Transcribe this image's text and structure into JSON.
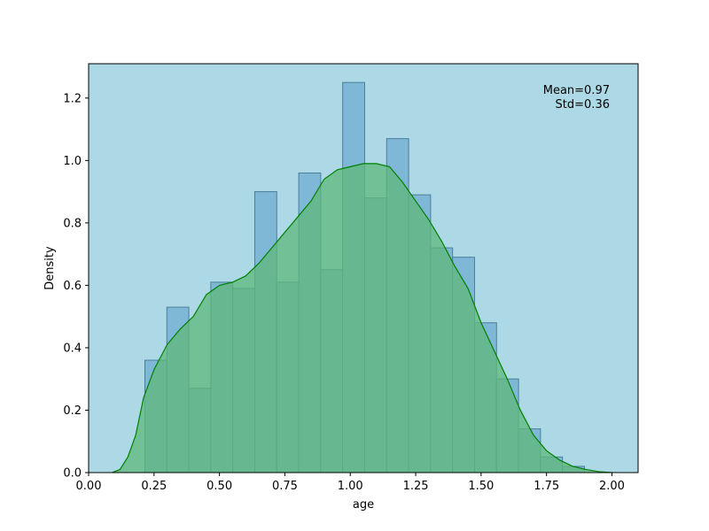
{
  "colors": {
    "plot_background": "#add8e6",
    "bar_fill": "#7fb7d6",
    "bar_edge": "#4a7f9a",
    "kde_fill": "#5fb87a",
    "kde_line": "#008000"
  },
  "chart_data": {
    "type": "bar",
    "xlabel": "age",
    "ylabel": "Density",
    "xlim": [
      0.0,
      2.1
    ],
    "ylim": [
      0.0,
      1.31
    ],
    "xticks": [
      0.0,
      0.25,
      0.5,
      0.75,
      1.0,
      1.25,
      1.5,
      1.75,
      2.0
    ],
    "xtick_labels": [
      "0.00",
      "0.25",
      "0.50",
      "0.75",
      "1.00",
      "1.25",
      "1.50",
      "1.75",
      "2.00"
    ],
    "yticks": [
      0.0,
      0.2,
      0.4,
      0.6,
      0.8,
      1.0,
      1.2
    ],
    "ytick_labels": [
      "0.0",
      "0.2",
      "0.4",
      "0.6",
      "0.8",
      "1.0",
      "1.2"
    ],
    "grid": false,
    "histogram": {
      "bin_edges": [
        0.215,
        0.299,
        0.383,
        0.467,
        0.551,
        0.635,
        0.719,
        0.803,
        0.887,
        0.971,
        1.055,
        1.139,
        1.223,
        1.307,
        1.391,
        1.475,
        1.559,
        1.643,
        1.727,
        1.811,
        1.895
      ],
      "densities": [
        0.36,
        0.53,
        0.27,
        0.61,
        0.59,
        0.9,
        0.61,
        0.96,
        0.65,
        1.25,
        0.88,
        1.07,
        0.89,
        0.72,
        0.69,
        0.48,
        0.3,
        0.14,
        0.05,
        0.02
      ]
    },
    "kde": {
      "x": [
        0.09,
        0.12,
        0.15,
        0.18,
        0.21,
        0.25,
        0.3,
        0.35,
        0.4,
        0.45,
        0.5,
        0.55,
        0.6,
        0.65,
        0.7,
        0.75,
        0.8,
        0.85,
        0.9,
        0.95,
        1.0,
        1.05,
        1.1,
        1.15,
        1.2,
        1.25,
        1.3,
        1.35,
        1.4,
        1.45,
        1.5,
        1.55,
        1.6,
        1.65,
        1.7,
        1.75,
        1.8,
        1.85,
        1.9,
        1.95,
        2.0
      ],
      "y": [
        0.0,
        0.01,
        0.05,
        0.12,
        0.24,
        0.33,
        0.41,
        0.46,
        0.5,
        0.57,
        0.6,
        0.61,
        0.63,
        0.67,
        0.72,
        0.77,
        0.82,
        0.87,
        0.94,
        0.97,
        0.98,
        0.99,
        0.99,
        0.98,
        0.93,
        0.87,
        0.81,
        0.74,
        0.66,
        0.59,
        0.48,
        0.39,
        0.3,
        0.2,
        0.12,
        0.07,
        0.04,
        0.02,
        0.01,
        0.003,
        0.0
      ]
    },
    "annotations": [
      "Mean=0.97",
      "Std=0.36"
    ]
  }
}
